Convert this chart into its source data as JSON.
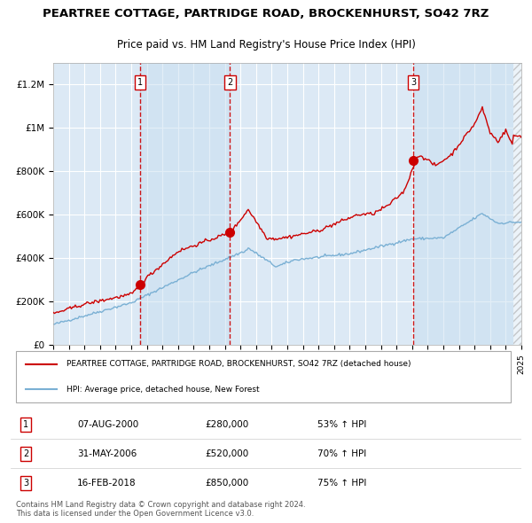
{
  "title": "PEARTREE COTTAGE, PARTRIDGE ROAD, BROCKENHURST, SO42 7RZ",
  "subtitle": "Price paid vs. HM Land Registry's House Price Index (HPI)",
  "x_start_year": 1995,
  "x_end_year": 2025,
  "y_min": 0,
  "y_max": 1300000,
  "y_ticks": [
    0,
    200000,
    400000,
    600000,
    800000,
    1000000,
    1200000
  ],
  "y_tick_labels": [
    "£0",
    "£200K",
    "£400K",
    "£600K",
    "£800K",
    "£1M",
    "£1.2M"
  ],
  "background_color": "#dce9f5",
  "outside_bg_color": "#ffffff",
  "grid_color": "#ffffff",
  "red_line_color": "#cc0000",
  "blue_line_color": "#7ab0d4",
  "purchase_prices": [
    280000,
    520000,
    850000
  ],
  "purchase_labels": [
    "1",
    "2",
    "3"
  ],
  "legend_line1": "PEARTREE COTTAGE, PARTRIDGE ROAD, BROCKENHURST, SO42 7RZ (detached house)",
  "legend_line2": "HPI: Average price, detached house, New Forest",
  "table_rows": [
    {
      "num": "1",
      "date": "07-AUG-2000",
      "price": "£280,000",
      "hpi": "53% ↑ HPI"
    },
    {
      "num": "2",
      "date": "31-MAY-2006",
      "price": "£520,000",
      "hpi": "70% ↑ HPI"
    },
    {
      "num": "3",
      "date": "16-FEB-2018",
      "price": "£850,000",
      "hpi": "75% ↑ HPI"
    }
  ],
  "footer": "Contains HM Land Registry data © Crown copyright and database right 2024.\nThis data is licensed under the Open Government Licence v3.0."
}
